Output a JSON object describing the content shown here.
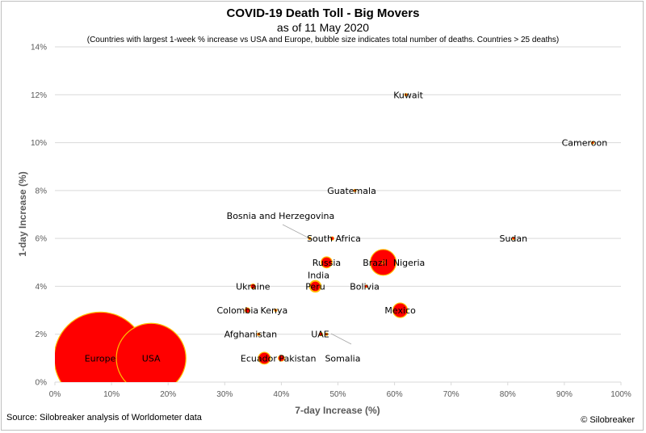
{
  "chart_data": {
    "type": "scatter",
    "title": "COVID-19 Death Toll - Big Movers",
    "date_line": "as of 11 May 2020",
    "subtitle": "(Countries with largest 1-week % increase vs USA and Europe, bubble size indicates total number of deaths. Countries > 25 deaths)",
    "xlabel": "7-day Increase (%)",
    "ylabel": "1-day Increase (%)",
    "xlim": [
      0,
      100
    ],
    "ylim": [
      0,
      14
    ],
    "x_ticks": [
      "0%",
      "10%",
      "20%",
      "30%",
      "40%",
      "50%",
      "60%",
      "70%",
      "80%",
      "90%",
      "100%"
    ],
    "y_ticks": [
      "0%",
      "2%",
      "4%",
      "6%",
      "8%",
      "10%",
      "12%",
      "14%"
    ],
    "grid": "horizontal",
    "points": [
      {
        "label": "Europe",
        "x": 8,
        "y": 1,
        "size": 140000
      },
      {
        "label": "USA",
        "x": 17,
        "y": 1,
        "size": 80000
      },
      {
        "label": "Kuwait",
        "x": 62,
        "y": 12,
        "size": 88
      },
      {
        "label": "Cameroon",
        "x": 95,
        "y": 10,
        "size": 56
      },
      {
        "label": "Guatemala",
        "x": 53,
        "y": 8,
        "size": 29
      },
      {
        "label": "Bosnia and Herzegovina",
        "x": 45,
        "y": 6,
        "size": 60
      },
      {
        "label": "South Africa",
        "x": 49,
        "y": 6,
        "size": 200
      },
      {
        "label": "Sudan",
        "x": 81,
        "y": 6,
        "size": 70
      },
      {
        "label": "Russia",
        "x": 48,
        "y": 5,
        "size": 2000
      },
      {
        "label": "Brazil",
        "x": 58,
        "y": 5,
        "size": 11000
      },
      {
        "label": "Nigeria",
        "x": 58,
        "y": 5,
        "size": 130
      },
      {
        "label": "India",
        "x": 46,
        "y": 4,
        "size": 2200
      },
      {
        "label": "Peru",
        "x": 46,
        "y": 4,
        "size": 1800
      },
      {
        "label": "Ukraine",
        "x": 35,
        "y": 4,
        "size": 400
      },
      {
        "label": "Bolivia",
        "x": 55,
        "y": 4,
        "size": 120
      },
      {
        "label": "Colombia",
        "x": 34,
        "y": 3,
        "size": 450
      },
      {
        "label": "Kenya",
        "x": 39,
        "y": 3,
        "size": 30
      },
      {
        "label": "Mexico",
        "x": 61,
        "y": 3,
        "size": 3500
      },
      {
        "label": "Afghanistan",
        "x": 36,
        "y": 2,
        "size": 110
      },
      {
        "label": "UAE",
        "x": 47,
        "y": 2,
        "size": 200
      },
      {
        "label": "Somalia",
        "x": 48,
        "y": 2,
        "size": 50
      },
      {
        "label": "Ecuador",
        "x": 37,
        "y": 1,
        "size": 2300
      },
      {
        "label": "Pakistan",
        "x": 40,
        "y": 1,
        "size": 650
      }
    ]
  },
  "footer": {
    "source": "Source: Silobreaker analysis of Worldometer data",
    "copyright": "© Silobreaker"
  },
  "colors": {
    "bubble_fill": "#ff0000",
    "bubble_stroke": "#ffc000",
    "gridline": "#d9d9d9",
    "axis_text": "#595959",
    "leader_line": "#a6a6a6"
  }
}
